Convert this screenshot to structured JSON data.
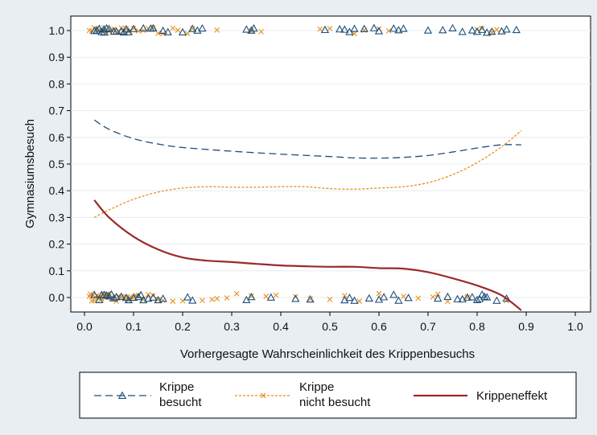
{
  "chart_data": {
    "type": "scatter",
    "xlabel": "Vorhergesagte Wahrscheinlichkeit des Krippenbesuchs",
    "ylabel": "Gymnasiumsbesuch",
    "xlim": [
      0.0,
      1.0
    ],
    "ylim": [
      -0.05,
      1.05
    ],
    "x_ticks": [
      "0.0",
      "0.1",
      "0.2",
      "0.3",
      "0.4",
      "0.5",
      "0.6",
      "0.7",
      "0.8",
      "0.9",
      "1.0"
    ],
    "y_ticks": [
      "0.0",
      "0.1",
      "0.2",
      "0.3",
      "0.4",
      "0.5",
      "0.6",
      "0.7",
      "0.8",
      "0.9",
      "1.0"
    ],
    "grid": "horizontal",
    "legend_position": "bottom",
    "colors": {
      "background": "#e8eef2",
      "plot_background": "#ffffff",
      "besucht": "#1f4e79",
      "nicht_besucht": "#e8901a",
      "effekt": "#9b2a2a"
    },
    "legend": [
      {
        "line1": "Krippe",
        "line2": "besucht",
        "style": "dashed-triangle"
      },
      {
        "line1": "Krippe",
        "line2": "nicht besucht",
        "style": "dotted-x"
      },
      {
        "line1": "Krippeneffekt",
        "line2": "",
        "style": "solid"
      }
    ],
    "series": [
      {
        "name": "Krippe besucht",
        "kind": "smooth",
        "points": [
          [
            0.02,
            0.665
          ],
          [
            0.05,
            0.63
          ],
          [
            0.1,
            0.595
          ],
          [
            0.15,
            0.575
          ],
          [
            0.2,
            0.562
          ],
          [
            0.3,
            0.548
          ],
          [
            0.4,
            0.537
          ],
          [
            0.5,
            0.528
          ],
          [
            0.55,
            0.523
          ],
          [
            0.6,
            0.522
          ],
          [
            0.65,
            0.525
          ],
          [
            0.7,
            0.532
          ],
          [
            0.75,
            0.545
          ],
          [
            0.8,
            0.56
          ],
          [
            0.85,
            0.572
          ],
          [
            0.89,
            0.572
          ]
        ]
      },
      {
        "name": "Krippe nicht besucht",
        "kind": "smooth",
        "points": [
          [
            0.02,
            0.3
          ],
          [
            0.05,
            0.328
          ],
          [
            0.1,
            0.368
          ],
          [
            0.15,
            0.395
          ],
          [
            0.2,
            0.41
          ],
          [
            0.25,
            0.415
          ],
          [
            0.3,
            0.413
          ],
          [
            0.35,
            0.413
          ],
          [
            0.4,
            0.415
          ],
          [
            0.45,
            0.415
          ],
          [
            0.5,
            0.408
          ],
          [
            0.55,
            0.406
          ],
          [
            0.6,
            0.41
          ],
          [
            0.65,
            0.415
          ],
          [
            0.7,
            0.43
          ],
          [
            0.75,
            0.46
          ],
          [
            0.8,
            0.505
          ],
          [
            0.85,
            0.565
          ],
          [
            0.89,
            0.625
          ]
        ]
      },
      {
        "name": "Krippeneffekt",
        "kind": "smooth",
        "points": [
          [
            0.02,
            0.365
          ],
          [
            0.05,
            0.3
          ],
          [
            0.1,
            0.228
          ],
          [
            0.15,
            0.18
          ],
          [
            0.2,
            0.15
          ],
          [
            0.25,
            0.138
          ],
          [
            0.3,
            0.133
          ],
          [
            0.35,
            0.126
          ],
          [
            0.4,
            0.12
          ],
          [
            0.45,
            0.117
          ],
          [
            0.5,
            0.115
          ],
          [
            0.55,
            0.115
          ],
          [
            0.6,
            0.11
          ],
          [
            0.65,
            0.108
          ],
          [
            0.7,
            0.095
          ],
          [
            0.75,
            0.072
          ],
          [
            0.8,
            0.045
          ],
          [
            0.85,
            0.008
          ],
          [
            0.89,
            -0.048
          ]
        ]
      },
      {
        "name": "Krippe besucht (Beobachtungen)",
        "kind": "triangle",
        "y1": [
          0.02,
          0.025,
          0.03,
          0.035,
          0.04,
          0.04,
          0.045,
          0.05,
          0.06,
          0.065,
          0.075,
          0.08,
          0.085,
          0.09,
          0.1,
          0.12,
          0.135,
          0.14,
          0.16,
          0.17,
          0.2,
          0.22,
          0.23,
          0.24,
          0.33,
          0.34,
          0.345,
          0.49,
          0.52,
          0.53,
          0.54,
          0.55,
          0.57,
          0.59,
          0.6,
          0.63,
          0.64,
          0.65,
          0.7,
          0.73,
          0.75,
          0.77,
          0.79,
          0.8,
          0.81,
          0.82,
          0.83,
          0.85,
          0.86,
          0.88
        ],
        "y0": [
          0.02,
          0.03,
          0.035,
          0.04,
          0.045,
          0.05,
          0.055,
          0.06,
          0.065,
          0.075,
          0.085,
          0.09,
          0.1,
          0.11,
          0.115,
          0.12,
          0.13,
          0.14,
          0.15,
          0.16,
          0.21,
          0.22,
          0.33,
          0.34,
          0.38,
          0.43,
          0.46,
          0.53,
          0.54,
          0.55,
          0.58,
          0.6,
          0.61,
          0.63,
          0.64,
          0.66,
          0.72,
          0.74,
          0.76,
          0.77,
          0.78,
          0.79,
          0.8,
          0.805,
          0.81,
          0.815,
          0.82,
          0.84,
          0.86
        ]
      },
      {
        "name": "Krippe nicht besucht (Beobachtungen)",
        "kind": "x",
        "y1": [
          0.01,
          0.015,
          0.02,
          0.025,
          0.03,
          0.035,
          0.04,
          0.045,
          0.05,
          0.055,
          0.06,
          0.065,
          0.07,
          0.075,
          0.08,
          0.085,
          0.09,
          0.1,
          0.11,
          0.12,
          0.13,
          0.14,
          0.15,
          0.16,
          0.18,
          0.19,
          0.21,
          0.22,
          0.27,
          0.34,
          0.36,
          0.48,
          0.5,
          0.55,
          0.57,
          0.6,
          0.62,
          0.8,
          0.81,
          0.83,
          0.84
        ],
        "y0": [
          0.01,
          0.012,
          0.015,
          0.018,
          0.02,
          0.022,
          0.025,
          0.028,
          0.03,
          0.033,
          0.035,
          0.038,
          0.04,
          0.043,
          0.045,
          0.048,
          0.05,
          0.055,
          0.06,
          0.065,
          0.07,
          0.075,
          0.08,
          0.085,
          0.09,
          0.095,
          0.1,
          0.105,
          0.11,
          0.12,
          0.13,
          0.14,
          0.15,
          0.16,
          0.18,
          0.2,
          0.24,
          0.26,
          0.27,
          0.29,
          0.31,
          0.34,
          0.37,
          0.39,
          0.43,
          0.46,
          0.5,
          0.53,
          0.56,
          0.6,
          0.65,
          0.68,
          0.71,
          0.72,
          0.74,
          0.78,
          0.86
        ]
      }
    ]
  }
}
